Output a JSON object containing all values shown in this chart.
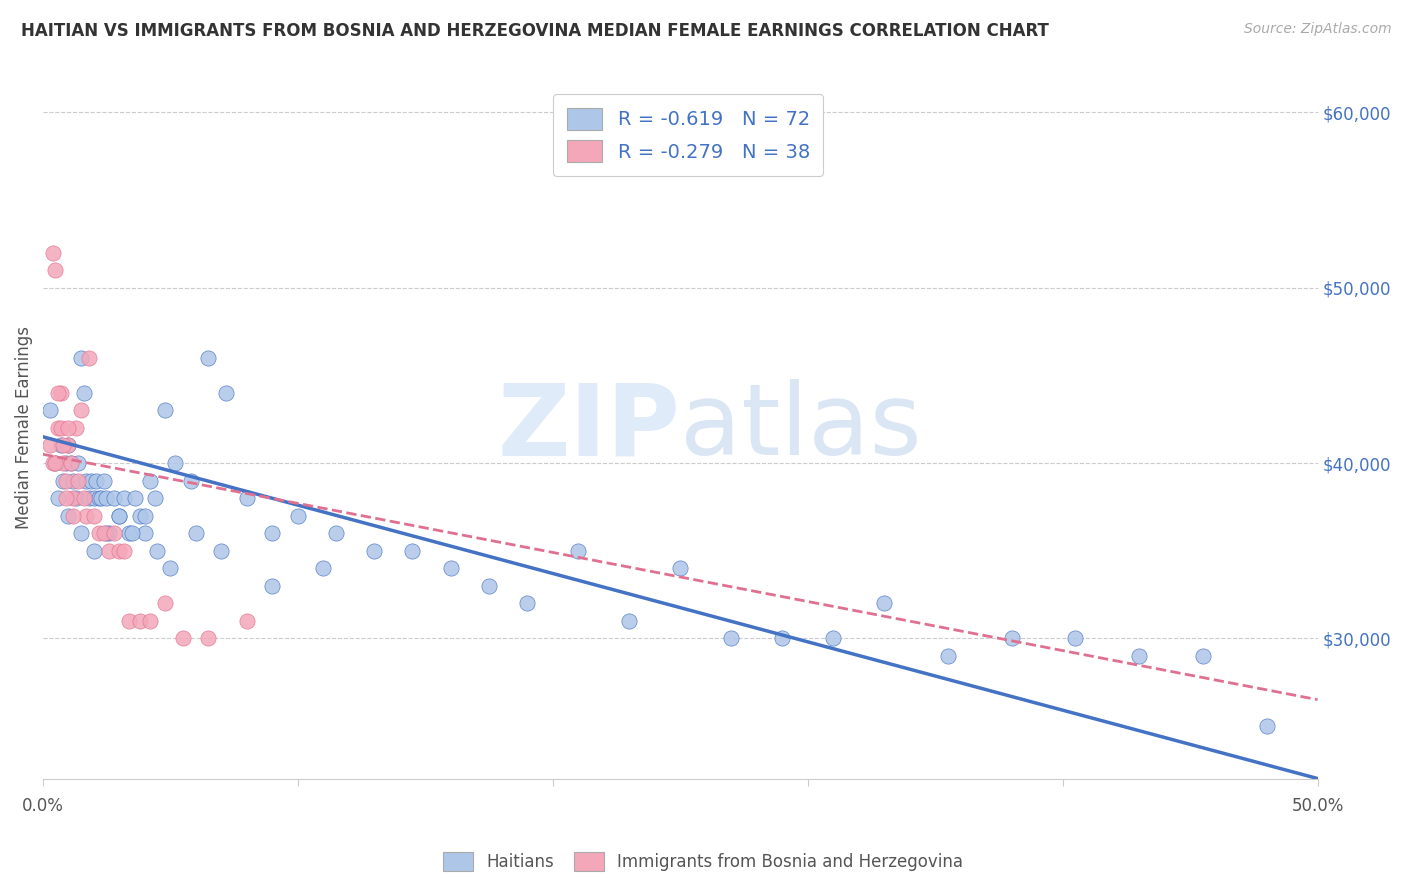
{
  "title": "HAITIAN VS IMMIGRANTS FROM BOSNIA AND HERZEGOVINA MEDIAN FEMALE EARNINGS CORRELATION CHART",
  "source": "Source: ZipAtlas.com",
  "ylabel": "Median Female Earnings",
  "xlim": [
    0.0,
    0.5
  ],
  "ylim": [
    22000,
    62000
  ],
  "yticks": [
    30000,
    40000,
    50000,
    60000
  ],
  "ytick_labels": [
    "$30,000",
    "$40,000",
    "$50,000",
    "$60,000"
  ],
  "xticks": [
    0.0,
    0.1,
    0.2,
    0.3,
    0.4,
    0.5
  ],
  "xtick_labels": [
    "0.0%",
    "",
    "",
    "",
    "",
    "50.0%"
  ],
  "color_blue": "#aec6e8",
  "color_pink": "#f4a7b9",
  "line_blue": "#4472c4",
  "line_pink": "#e07090",
  "legend_R1": "R = -0.619",
  "legend_N1": "N = 72",
  "legend_R2": "R = -0.279",
  "legend_N2": "N = 38",
  "watermark": "ZIPatlas",
  "label1": "Haitians",
  "label2": "Immigrants from Bosnia and Herzegovina",
  "blue_scatter_x": [
    0.003,
    0.005,
    0.006,
    0.007,
    0.008,
    0.009,
    0.01,
    0.011,
    0.012,
    0.013,
    0.014,
    0.015,
    0.016,
    0.017,
    0.018,
    0.019,
    0.02,
    0.021,
    0.022,
    0.023,
    0.024,
    0.025,
    0.026,
    0.028,
    0.03,
    0.032,
    0.034,
    0.036,
    0.038,
    0.04,
    0.042,
    0.044,
    0.048,
    0.052,
    0.058,
    0.065,
    0.072,
    0.08,
    0.09,
    0.1,
    0.115,
    0.13,
    0.145,
    0.16,
    0.175,
    0.19,
    0.21,
    0.23,
    0.25,
    0.27,
    0.29,
    0.31,
    0.33,
    0.355,
    0.38,
    0.405,
    0.43,
    0.455,
    0.48,
    0.01,
    0.015,
    0.02,
    0.025,
    0.03,
    0.035,
    0.04,
    0.045,
    0.05,
    0.06,
    0.07,
    0.09,
    0.11
  ],
  "blue_scatter_y": [
    43000,
    40000,
    38000,
    41000,
    39000,
    40000,
    41000,
    40000,
    39000,
    38000,
    40000,
    46000,
    44000,
    39000,
    38000,
    39000,
    38000,
    39000,
    38000,
    38000,
    39000,
    38000,
    36000,
    38000,
    37000,
    38000,
    36000,
    38000,
    37000,
    36000,
    39000,
    38000,
    43000,
    40000,
    39000,
    46000,
    44000,
    38000,
    36000,
    37000,
    36000,
    35000,
    35000,
    34000,
    33000,
    32000,
    35000,
    31000,
    34000,
    30000,
    30000,
    30000,
    32000,
    29000,
    30000,
    30000,
    29000,
    29000,
    25000,
    37000,
    36000,
    35000,
    36000,
    37000,
    36000,
    37000,
    35000,
    34000,
    36000,
    35000,
    33000,
    34000
  ],
  "pink_scatter_x": [
    0.003,
    0.004,
    0.005,
    0.006,
    0.007,
    0.008,
    0.009,
    0.01,
    0.011,
    0.012,
    0.013,
    0.014,
    0.015,
    0.016,
    0.017,
    0.018,
    0.02,
    0.022,
    0.024,
    0.026,
    0.028,
    0.03,
    0.032,
    0.034,
    0.038,
    0.042,
    0.048,
    0.055,
    0.065,
    0.08,
    0.004,
    0.005,
    0.006,
    0.007,
    0.008,
    0.009,
    0.01,
    0.012
  ],
  "pink_scatter_y": [
    41000,
    52000,
    51000,
    42000,
    44000,
    40000,
    39000,
    41000,
    40000,
    38000,
    42000,
    39000,
    43000,
    38000,
    37000,
    46000,
    37000,
    36000,
    36000,
    35000,
    36000,
    35000,
    35000,
    31000,
    31000,
    31000,
    32000,
    30000,
    30000,
    31000,
    40000,
    40000,
    44000,
    42000,
    41000,
    38000,
    42000,
    37000
  ],
  "blue_line_x": [
    0.0,
    0.5
  ],
  "blue_line_y": [
    41500,
    22000
  ],
  "pink_line_x": [
    0.0,
    0.5
  ],
  "pink_line_y": [
    40500,
    26500
  ],
  "background_color": "#ffffff",
  "grid_color": "#cccccc",
  "title_color": "#333333",
  "right_ylabel_color": "#4472c4"
}
